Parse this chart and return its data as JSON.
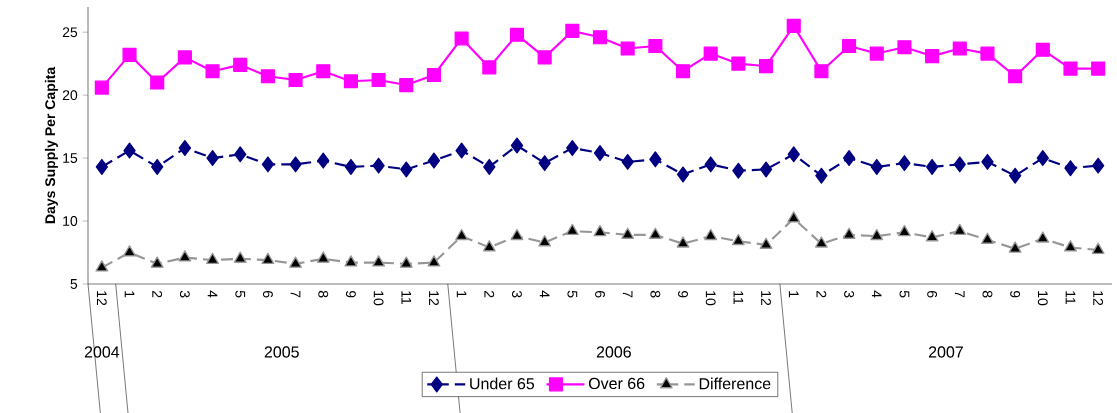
{
  "chart_data": {
    "type": "line",
    "ylabel": "Days Supply Per Capita",
    "categories": [
      "12",
      "1",
      "2",
      "3",
      "4",
      "5",
      "6",
      "7",
      "8",
      "9",
      "10",
      "11",
      "12",
      "1",
      "2",
      "3",
      "4",
      "5",
      "6",
      "7",
      "8",
      "9",
      "10",
      "11",
      "12",
      "1",
      "2",
      "3",
      "4",
      "5",
      "6",
      "7",
      "8",
      "9",
      "10",
      "11",
      "12"
    ],
    "series": [
      {
        "name": "Under 65",
        "color": "#000080",
        "marker": "diamond",
        "line_style": "dashed",
        "values": [
          14.3,
          15.6,
          14.3,
          15.8,
          15.0,
          15.3,
          14.5,
          14.5,
          14.8,
          14.3,
          14.4,
          14.1,
          14.8,
          15.6,
          14.3,
          16.0,
          14.6,
          15.8,
          15.4,
          14.7,
          14.9,
          13.7,
          14.5,
          14.0,
          14.1,
          15.3,
          13.6,
          15.0,
          14.3,
          14.6,
          14.3,
          14.5,
          14.7,
          13.6,
          15.0,
          14.2,
          14.4
        ]
      },
      {
        "name": "Over 66",
        "color": "#ff00ff",
        "marker": "square",
        "line_style": "solid",
        "values": [
          20.6,
          23.2,
          21.0,
          23.0,
          21.9,
          22.4,
          21.5,
          21.2,
          21.9,
          21.1,
          21.2,
          20.8,
          21.6,
          24.5,
          22.2,
          24.8,
          23.0,
          25.1,
          24.6,
          23.7,
          23.9,
          21.9,
          23.3,
          22.5,
          22.3,
          25.5,
          21.9,
          23.9,
          23.3,
          23.8,
          23.1,
          23.7,
          23.3,
          21.5,
          23.6,
          22.1,
          22.1
        ]
      },
      {
        "name": "Difference",
        "color": "#969696",
        "marker": "triangle",
        "line_style": "dashed",
        "values": [
          6.3,
          7.5,
          6.6,
          7.1,
          6.9,
          7.0,
          6.9,
          6.6,
          7.0,
          6.7,
          6.7,
          6.6,
          6.7,
          8.8,
          7.9,
          8.8,
          8.3,
          9.2,
          9.1,
          8.9,
          8.9,
          8.2,
          8.8,
          8.4,
          8.1,
          10.2,
          8.2,
          8.9,
          8.8,
          9.1,
          8.7,
          9.2,
          8.5,
          7.8,
          8.6,
          7.9,
          7.7
        ]
      }
    ],
    "annotations": [
      "2004",
      "2005",
      "2006",
      "2007"
    ],
    "ylim": [
      5,
      27
    ],
    "yticks": [
      5,
      10,
      15,
      20,
      25
    ],
    "legend": "bottom",
    "grid": false
  }
}
